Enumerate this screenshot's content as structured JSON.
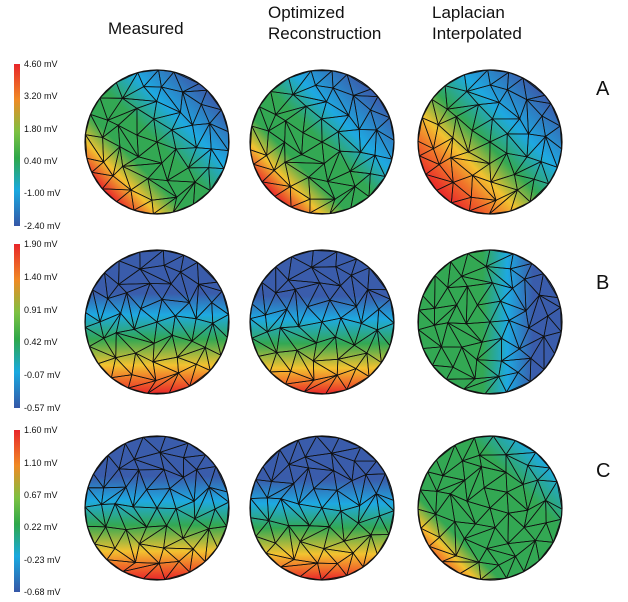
{
  "columns": [
    {
      "lines": [
        "Measured"
      ]
    },
    {
      "lines": [
        "Optimized",
        "Reconstruction"
      ]
    },
    {
      "lines": [
        "Laplacian",
        "Interpolated"
      ]
    }
  ],
  "rows": [
    {
      "label": "A",
      "ticks": [
        "4.60 mV",
        "3.20 mV",
        "1.80 mV",
        "0.40 mV",
        "-1.00 mV",
        "-2.40 mV"
      ]
    },
    {
      "label": "B",
      "ticks": [
        "1.90 mV",
        "1.40  mV",
        "0.91 mV",
        "0.42 mV",
        "-0.07 mV",
        "-0.57 mV"
      ]
    },
    {
      "label": "C",
      "ticks": [
        "1.60 mV",
        "1.10 mV",
        "0.67 mV",
        "0.22 mV",
        "-0.23 mV",
        "-0.68 mV"
      ]
    }
  ],
  "colors": {
    "scale": [
      "#e8262a",
      "#f08a24",
      "#7cc142",
      "#2fa84a",
      "#19a9e0",
      "#3557a7"
    ]
  },
  "maps": [
    [
      "measured-A",
      "optimized-A",
      "laplacian-A"
    ],
    [
      "measured-B",
      "optimized-B",
      "laplacian-B"
    ],
    [
      "measured-C",
      "optimized-C",
      "laplacian-C"
    ]
  ]
}
